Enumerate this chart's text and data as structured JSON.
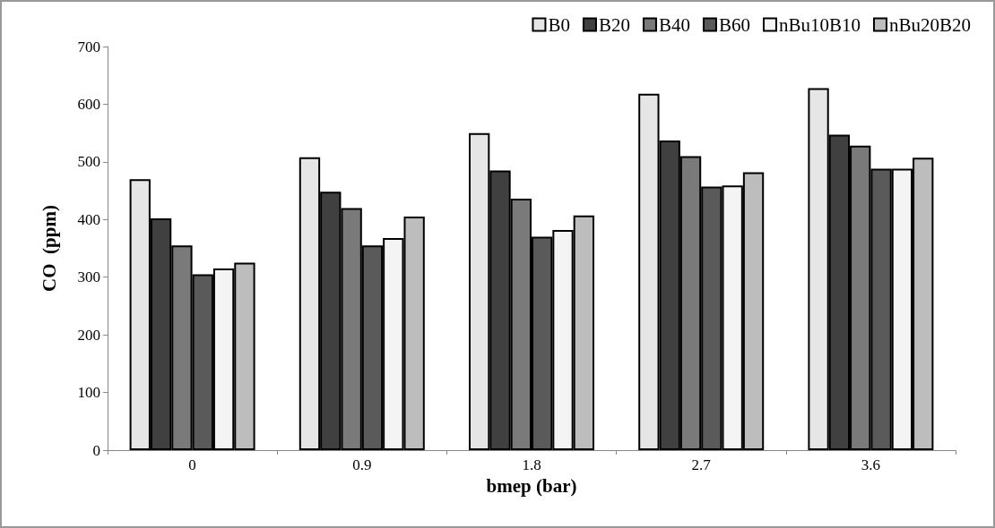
{
  "chart_data": {
    "type": "bar",
    "xlabel": "bmep (bar)",
    "ylabel": "CO  (ppm)",
    "categories": [
      "0",
      "0.9",
      "1.8",
      "2.7",
      "3.6"
    ],
    "series": [
      {
        "name": "B0",
        "color": "#e6e6e6",
        "values": [
          470,
          508,
          550,
          618,
          628
        ]
      },
      {
        "name": "B20",
        "color": "#404040",
        "values": [
          402,
          448,
          485,
          537,
          547
        ]
      },
      {
        "name": "B40",
        "color": "#7a7a7a",
        "values": [
          355,
          420,
          436,
          510,
          528
        ]
      },
      {
        "name": "B60",
        "color": "#5a5a5a",
        "values": [
          305,
          355,
          370,
          457,
          488
        ]
      },
      {
        "name": "nBu10B10",
        "color": "#f4f4f4",
        "values": [
          315,
          368,
          382,
          459,
          488
        ]
      },
      {
        "name": "nBu20B20",
        "color": "#bdbdbd",
        "values": [
          325,
          405,
          407,
          482,
          507
        ]
      }
    ],
    "ylim": [
      0,
      700
    ],
    "yticks": [
      0,
      100,
      200,
      300,
      400,
      500,
      600,
      700
    ],
    "grid": false,
    "legend": "top right"
  }
}
